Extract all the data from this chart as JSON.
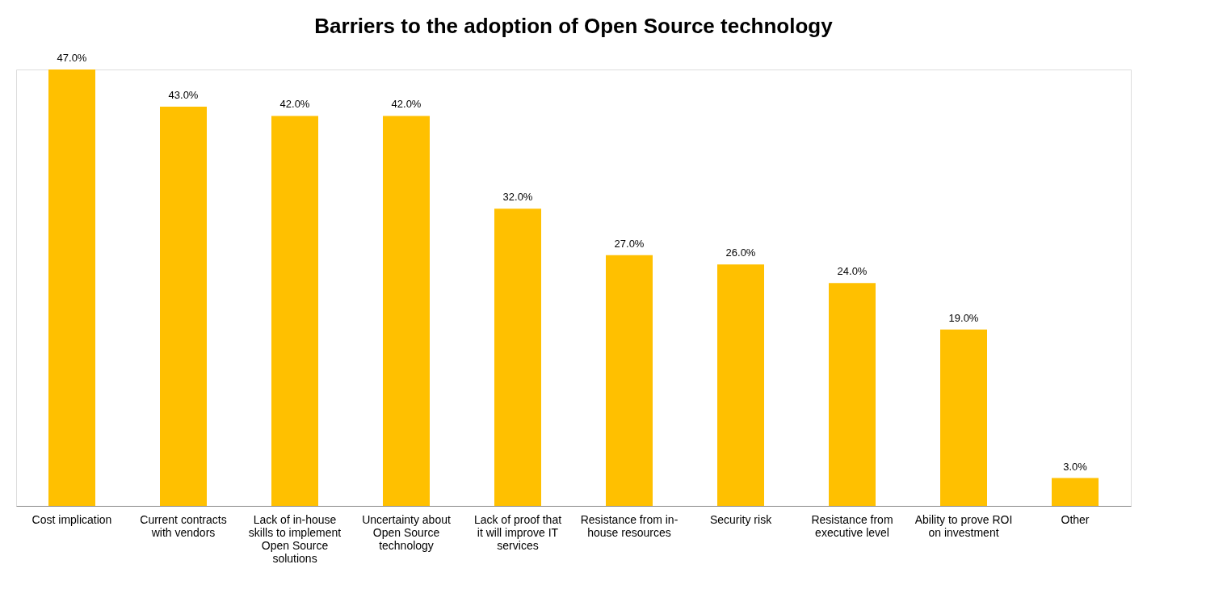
{
  "chart_data": {
    "type": "bar",
    "title": "Barriers to the adoption of Open Source technology",
    "categories": [
      "Cost implication",
      "Current contracts with vendors",
      "Lack of in-house skills to implement Open Source solutions",
      "Uncertainty about Open Source technology",
      "Lack of proof that it will improve IT services",
      "Resistance from in-house resources",
      "Security risk",
      "Resistance from executive level",
      "Ability to prove ROI on investment",
      "Other"
    ],
    "values": [
      47,
      43,
      42,
      42,
      32,
      27,
      26,
      24,
      19,
      3
    ],
    "value_labels": [
      "47.0%",
      "43.0%",
      "42.0%",
      "42.0%",
      "32.0%",
      "27.0%",
      "26.0%",
      "24.0%",
      "19.0%",
      "3.0%"
    ],
    "color": "#ffc000",
    "grid": false
  }
}
